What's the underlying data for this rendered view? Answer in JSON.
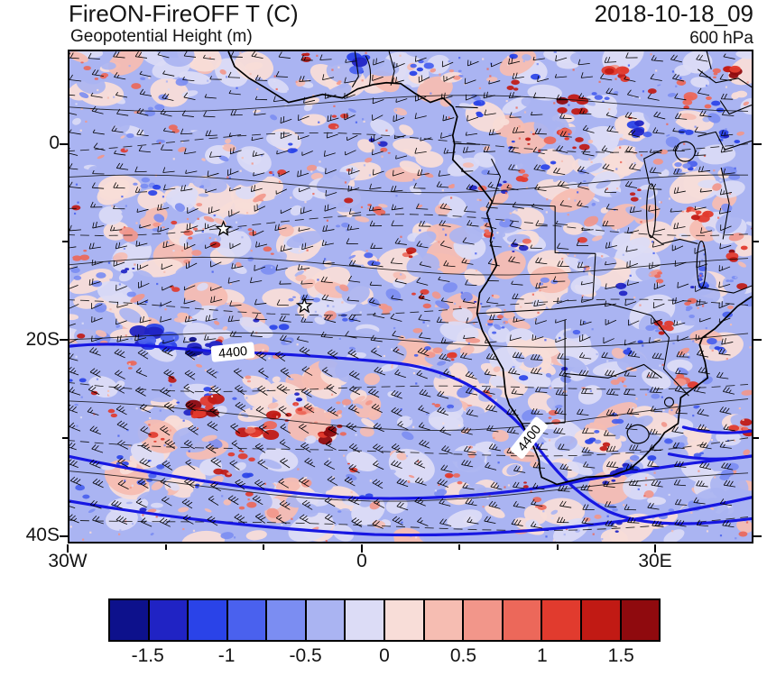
{
  "header": {
    "title": "FireON-FireOFF T (C)",
    "datetime": "2018-10-18_09",
    "subtitle": "Geopotential Height (m)",
    "level": "600 hPa"
  },
  "axes": {
    "y_labels": [
      "0",
      "20S",
      "40S"
    ],
    "x_labels": [
      "30W",
      "0",
      "30E"
    ]
  },
  "map": {
    "contour_label": "4400",
    "background": "#aab4f2",
    "contour_color": "#1717e2",
    "coast_color": "#000000"
  },
  "colorbar": {
    "labels": [
      "-1.5",
      "-1",
      "-0.5",
      "0",
      "0.5",
      "1",
      "1.5"
    ],
    "colors": [
      "#0d118c",
      "#2023c4",
      "#2a43e8",
      "#4a61ee",
      "#7b8df2",
      "#aab4f2",
      "#dcdcf6",
      "#f8ddd8",
      "#f6bdb2",
      "#f2968a",
      "#ec685a",
      "#e13b2e",
      "#c11a14",
      "#8f0a0e"
    ]
  },
  "chart_data": {
    "type": "heatmap",
    "title": "FireON-FireOFF T (C)",
    "overlay": "Geopotential Height (m)",
    "level": "600 hPa",
    "datetime": "2018-10-18_09",
    "projection": "lat-lon map, southern Africa / South Atlantic",
    "lon_range": [
      -30,
      40
    ],
    "lat_range": [
      -41,
      10
    ],
    "x_ticks": [
      "30W",
      "0",
      "30E"
    ],
    "y_ticks": [
      "0",
      "20S",
      "40S"
    ],
    "shading_variable": "Temperature difference FireON minus FireOFF (C)",
    "shading_levels": [
      -1.5,
      -1.25,
      -1,
      -0.75,
      -0.5,
      -0.25,
      0,
      0.25,
      0.5,
      0.75,
      1,
      1.25,
      1.5
    ],
    "colorbar_tick_labels": [
      "-1.5",
      "-1",
      "-0.5",
      "0",
      "0.5",
      "1",
      "1.5"
    ],
    "colors": [
      "#0d118c",
      "#2023c4",
      "#2a43e8",
      "#4a61ee",
      "#7b8df2",
      "#aab4f2",
      "#dcdcf6",
      "#f8ddd8",
      "#f6bdb2",
      "#f2968a",
      "#ec685a",
      "#e13b2e",
      "#c11a14",
      "#8f0a0e"
    ],
    "contours": {
      "variable": "Geopotential Height (m)",
      "labeled_level": 4400,
      "label_occurrences": 2,
      "color": "#1717e2"
    },
    "wind_barbs": true,
    "markers": [
      {
        "type": "star",
        "lon": -14.2,
        "lat": -8.6
      },
      {
        "type": "star",
        "lon": -5.9,
        "lat": -16.5
      }
    ]
  }
}
